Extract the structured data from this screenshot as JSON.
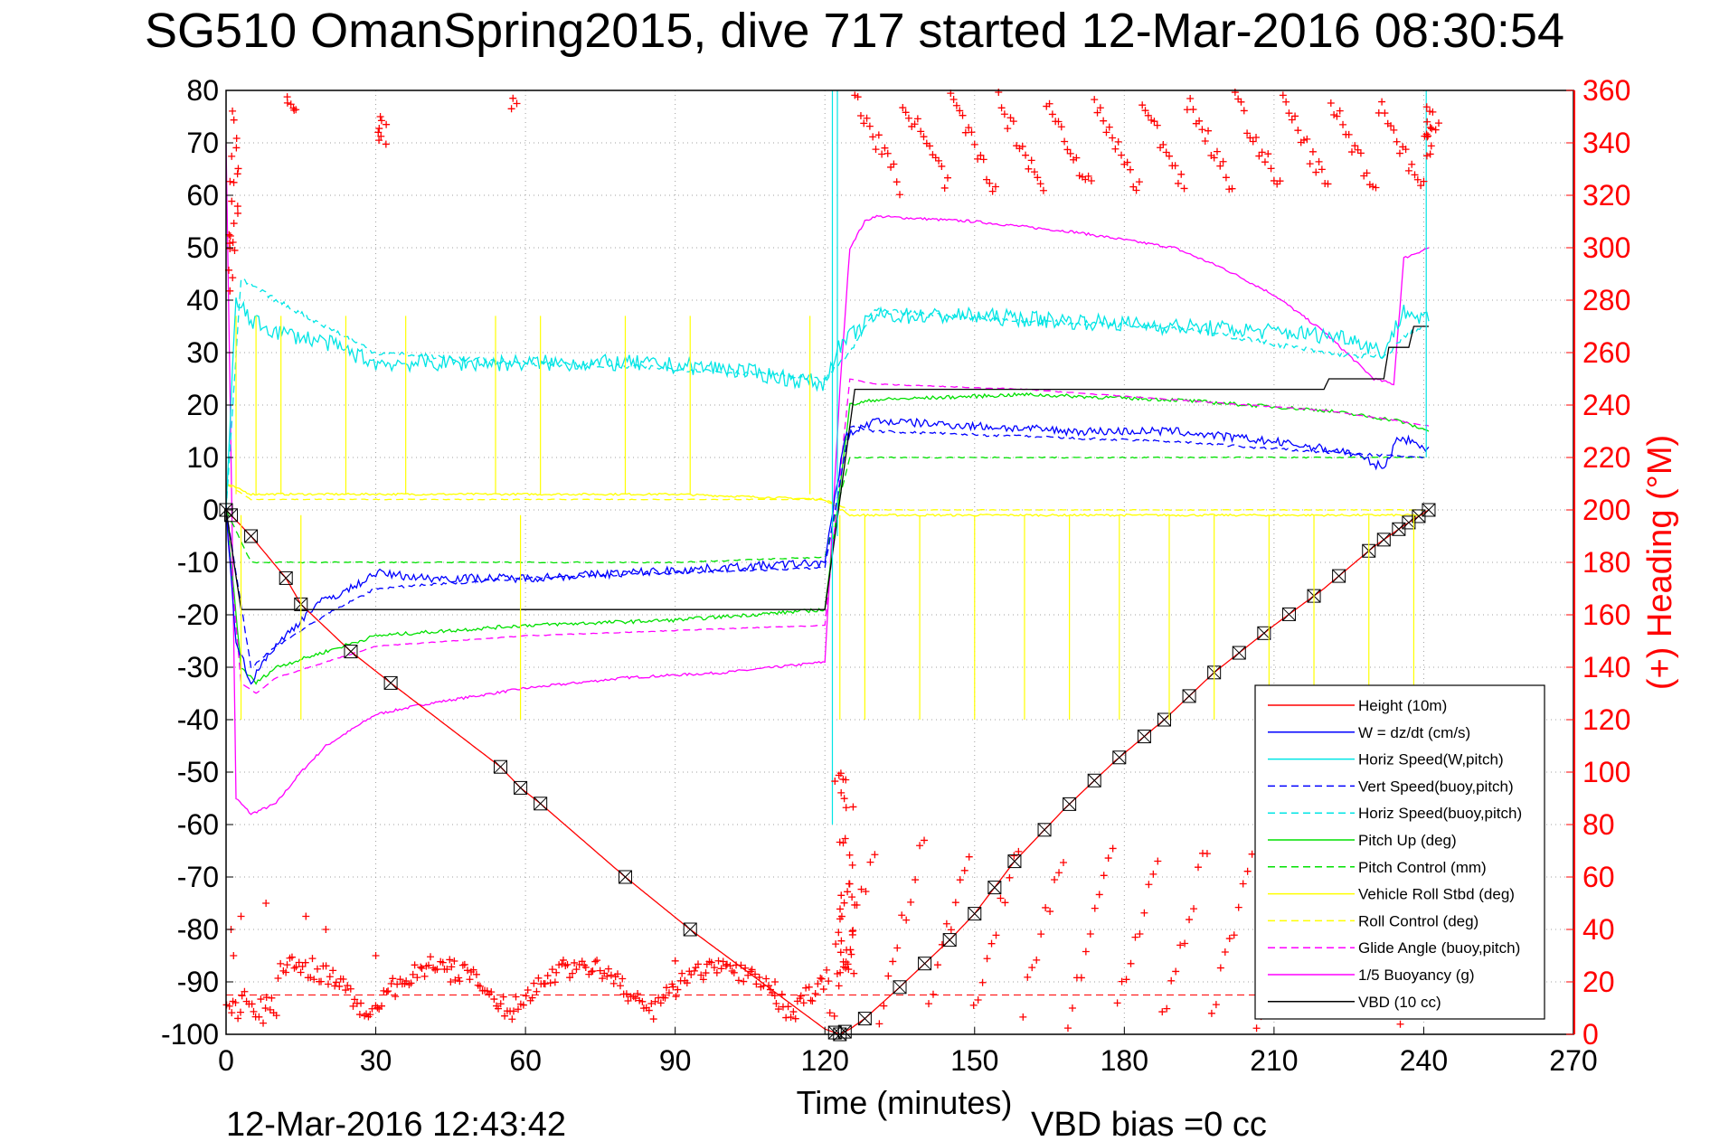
{
  "chart_data": {
    "type": "line",
    "title": "SG510 OmanSpring2015, dive 717 started 12-Mar-2016 08:30:54",
    "xlabel": "Time (minutes)",
    "ylabel_right": "(+) Heading (°M)",
    "footer_left": "12-Mar-2016 12:43:42",
    "footer_right": "VBD bias =0 cc",
    "xlim": [
      0,
      270
    ],
    "ylim": [
      -100,
      80
    ],
    "ylim_right": [
      0,
      360
    ],
    "xticks": [
      0,
      30,
      60,
      90,
      120,
      150,
      180,
      210,
      240,
      270
    ],
    "yticks": [
      80,
      70,
      60,
      50,
      40,
      30,
      20,
      10,
      0,
      -10,
      -20,
      -30,
      -40,
      -50,
      -60,
      -70,
      -80,
      -90,
      -100
    ],
    "yticks_right": [
      360,
      340,
      320,
      300,
      280,
      260,
      240,
      220,
      200,
      180,
      160,
      140,
      120,
      100,
      80,
      60,
      40,
      20,
      0
    ],
    "grid": true,
    "legend_position": "bottom-right",
    "colors": {
      "red": "#ff0000",
      "blue": "#0000ff",
      "cyan": "#00e5e5",
      "green": "#00e000",
      "yellow": "#ffff00",
      "magenta": "#ff00ff",
      "black": "#000000"
    },
    "series": [
      {
        "name": "Height (10m)",
        "color": "#ff0000",
        "style": "solid",
        "axis": "left",
        "x": [
          0,
          5,
          12,
          15,
          25,
          33,
          55,
          59,
          63,
          80,
          93,
          120,
          123,
          125,
          128,
          135,
          145,
          150,
          158,
          168,
          178,
          188,
          198,
          210,
          220,
          230,
          236,
          241
        ],
        "y": [
          0,
          -5,
          -13,
          -18,
          -27,
          -33,
          -49,
          -53,
          -56,
          -70,
          -80,
          -99,
          -100,
          -99,
          -97,
          -91,
          -82,
          -77,
          -67,
          -57,
          -48,
          -40,
          -31,
          -22,
          -15,
          -7,
          -3,
          0
        ]
      },
      {
        "name": "W = dz/dt (cm/s)",
        "color": "#0000ff",
        "style": "solid",
        "axis": "left",
        "x": [
          0,
          2,
          5,
          8,
          12,
          18,
          25,
          30,
          40,
          60,
          80,
          100,
          120,
          124,
          130,
          150,
          170,
          190,
          210,
          225,
          232,
          235,
          240,
          241
        ],
        "y": [
          0,
          -25,
          -33,
          -28,
          -24,
          -18,
          -15,
          -12,
          -13,
          -13,
          -12,
          -11,
          -10,
          14,
          17,
          16,
          15,
          15,
          13,
          11,
          8,
          14,
          12,
          12
        ]
      },
      {
        "name": "Horiz Speed(W,pitch)",
        "color": "#00e5e5",
        "style": "solid",
        "axis": "left",
        "x": [
          0,
          2,
          5,
          10,
          20,
          30,
          40,
          60,
          80,
          100,
          120,
          122,
          125,
          130,
          150,
          170,
          190,
          210,
          225,
          232,
          236,
          241
        ],
        "y": [
          0,
          40,
          36,
          34,
          32,
          28,
          28,
          28,
          28,
          27,
          24,
          30,
          33,
          37,
          37,
          36,
          35,
          34,
          33,
          30,
          38,
          36
        ]
      },
      {
        "name": "Vert Speed(buoy,pitch)",
        "color": "#0000ff",
        "style": "dashed",
        "axis": "left",
        "x": [
          0,
          5,
          10,
          20,
          30,
          60,
          90,
          120,
          125,
          130,
          160,
          190,
          220,
          240
        ],
        "y": [
          0,
          -30,
          -26,
          -20,
          -15,
          -13,
          -12,
          -11,
          16,
          15,
          14,
          13,
          11,
          10
        ]
      },
      {
        "name": "Horiz Speed(buoy,pitch)",
        "color": "#00e5e5",
        "style": "dashed",
        "axis": "left",
        "x": [
          0,
          3,
          10,
          20,
          30,
          60,
          90,
          120,
          125,
          130,
          160,
          190,
          220,
          232,
          236,
          240
        ],
        "y": [
          0,
          44,
          40,
          35,
          30,
          28,
          27,
          25,
          30,
          38,
          36,
          35,
          30,
          29,
          33,
          35
        ]
      },
      {
        "name": "Pitch Up (deg)",
        "color": "#00e000",
        "style": "solid",
        "axis": "left",
        "x": [
          0,
          3,
          6,
          10,
          20,
          30,
          60,
          90,
          120,
          125,
          130,
          160,
          190,
          220,
          235,
          241
        ],
        "y": [
          0,
          -30,
          -33,
          -30,
          -27,
          -24,
          -22,
          -21,
          -19,
          20,
          21,
          22,
          21,
          19,
          17,
          15
        ]
      },
      {
        "name": "Pitch Control (mm)",
        "color": "#00e000",
        "style": "dashed",
        "axis": "left",
        "x": [
          0,
          5,
          30,
          60,
          90,
          120,
          125,
          160,
          190,
          220,
          241
        ],
        "y": [
          0,
          -10,
          -10,
          -10,
          -10,
          -9,
          10,
          10,
          10,
          10,
          10
        ]
      },
      {
        "name": "Vehicle Roll Stbd (deg)",
        "color": "#ffff00",
        "style": "solid",
        "axis": "left",
        "x": [
          0,
          5,
          30,
          60,
          90,
          120,
          125,
          150,
          180,
          210,
          240
        ],
        "y": [
          5,
          3,
          3,
          3,
          3,
          2,
          -1,
          -1,
          -1,
          -1,
          -1
        ]
      },
      {
        "name": "Roll Control (deg)",
        "color": "#ffff00",
        "style": "dashed",
        "axis": "left",
        "x": [
          0,
          5,
          120,
          125,
          240
        ],
        "y": [
          5,
          2,
          2,
          0,
          0
        ]
      },
      {
        "name": "Glide Angle (buoy,pitch)",
        "color": "#ff00ff",
        "style": "dashed",
        "axis": "left",
        "x": [
          0,
          3,
          6,
          10,
          30,
          60,
          90,
          120,
          125,
          130,
          160,
          190,
          220,
          235,
          241
        ],
        "y": [
          0,
          -33,
          -35,
          -32,
          -26,
          -24,
          -23,
          -22,
          25,
          24,
          23,
          21,
          19,
          17,
          16
        ]
      },
      {
        "name": "1/5 Buoyancy (g)",
        "color": "#ff00ff",
        "style": "solid",
        "axis": "left",
        "x": [
          0,
          1,
          2,
          5,
          10,
          15,
          20,
          30,
          40,
          60,
          80,
          100,
          120,
          123,
          125,
          128,
          130,
          150,
          170,
          190,
          200,
          210,
          220,
          230,
          234,
          236,
          241
        ],
        "y": [
          70,
          10,
          -55,
          -58,
          -56,
          -50,
          -45,
          -39,
          -37,
          -34,
          -32,
          -31,
          -29,
          23,
          50,
          55,
          56,
          55,
          53,
          50,
          46,
          41,
          34,
          25,
          24,
          48,
          50
        ]
      },
      {
        "name": "VBD (10 cc)",
        "color": "#000000",
        "style": "solid",
        "axis": "left",
        "x": [
          0,
          3,
          120,
          126,
          220,
          221,
          232,
          233,
          237,
          238,
          241
        ],
        "y": [
          0,
          -19,
          -19,
          23,
          23,
          25,
          25,
          31,
          31,
          35,
          35
        ]
      }
    ],
    "heading": {
      "name": "Heading",
      "color": "#ff0000",
      "marker": "+",
      "axis": "right",
      "reference_line": 15
    }
  }
}
